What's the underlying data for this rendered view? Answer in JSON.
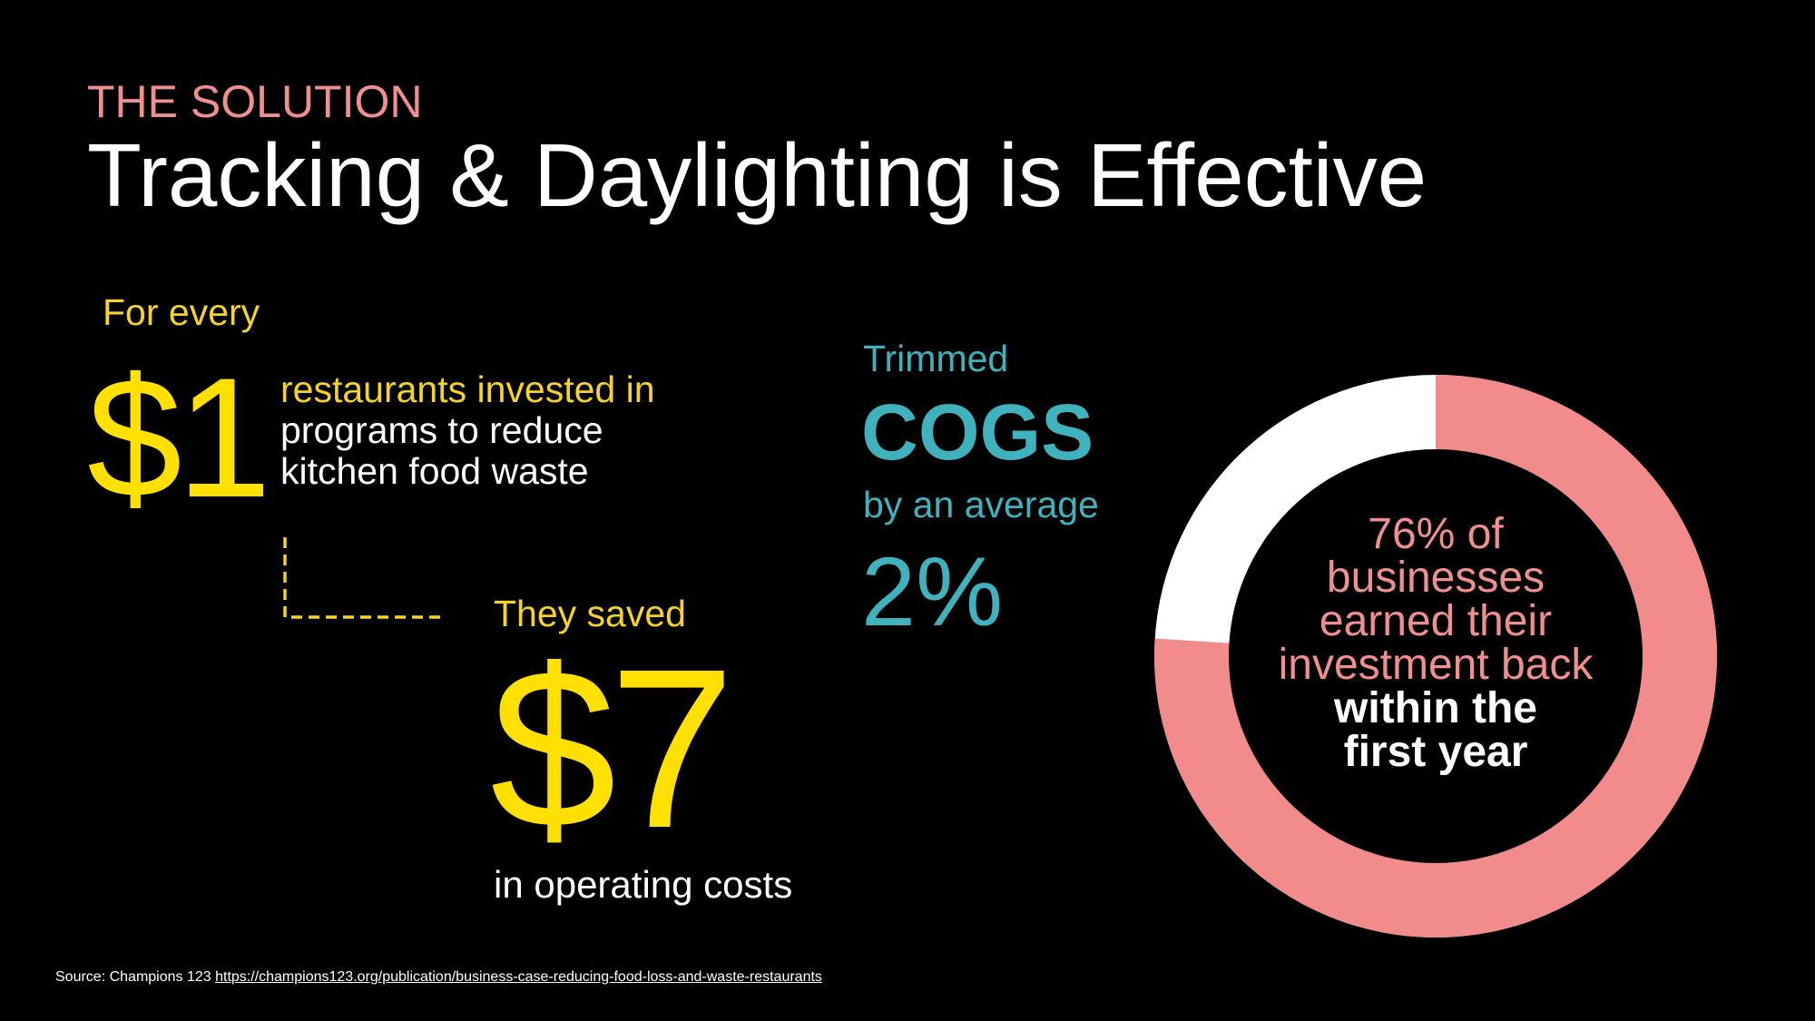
{
  "header": {
    "eyebrow": "THE SOLUTION",
    "title": "Tracking & Daylighting is Effective"
  },
  "investment": {
    "lead": "For every",
    "amount": "$1",
    "line1": "restaurants invested in",
    "line2": "programs to reduce",
    "line3": "kitchen food waste"
  },
  "savings": {
    "lead": "They saved",
    "amount": "$7",
    "trail": "in operating costs"
  },
  "cogs": {
    "lead": "Trimmed",
    "label": "COGS",
    "middle": "by an average",
    "value": "2%"
  },
  "donut": {
    "percent": 76,
    "line1": "76% of",
    "line2": "businesses",
    "line3": "earned their",
    "line4": "investment back",
    "line5": "within the",
    "line6": "first year",
    "colors": {
      "filled": "#f28b8b",
      "remainder": "#ffffff",
      "center": "#000000"
    }
  },
  "footer": {
    "source_label": "Source: Champions 123",
    "source_link": "https://champions123.org/publication/business-case-reducing-food-loss-and-waste-restaurants"
  },
  "colors": {
    "background": "#000000",
    "yellow": "#ffe000",
    "teal": "#3fb2bd",
    "pink": "#f08f8f"
  }
}
